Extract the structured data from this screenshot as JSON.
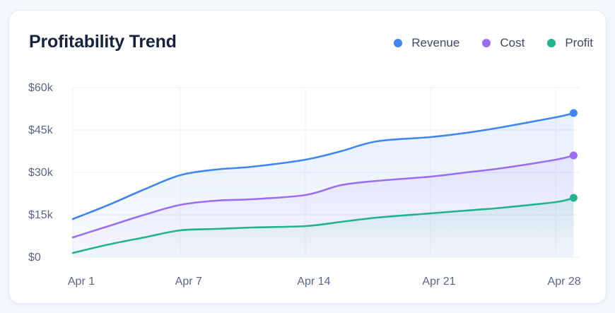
{
  "title": "Profitability Trend",
  "legend": [
    {
      "name": "Revenue",
      "color": "#3f86ef"
    },
    {
      "name": "Cost",
      "color": "#9b6ef0"
    },
    {
      "name": "Profit",
      "color": "#22b38d"
    }
  ],
  "chart_data": {
    "type": "area",
    "title": "Profitability Trend",
    "xlabel": "",
    "ylabel": "",
    "x": [
      1,
      3,
      5,
      7,
      9,
      11,
      14,
      16,
      18,
      21,
      23,
      25,
      28,
      29
    ],
    "xticks": [
      {
        "value": 1,
        "label": "Apr 1"
      },
      {
        "value": 7,
        "label": "Apr 7"
      },
      {
        "value": 14,
        "label": "Apr 14"
      },
      {
        "value": 21,
        "label": "Apr 21"
      },
      {
        "value": 28,
        "label": "Apr 28"
      }
    ],
    "yticks": [
      {
        "value": 0,
        "label": "$0"
      },
      {
        "value": 15000,
        "label": "$15k"
      },
      {
        "value": 30000,
        "label": "$30k"
      },
      {
        "value": 45000,
        "label": "$45k"
      },
      {
        "value": 60000,
        "label": "$60k"
      }
    ],
    "xlim": [
      1,
      29.3
    ],
    "ylim": [
      0,
      60000
    ],
    "grid": true,
    "legend_position": "top-right",
    "series": [
      {
        "name": "Revenue",
        "color": "#3f86ef",
        "values": [
          13500,
          18500,
          24000,
          29000,
          31000,
          32000,
          34500,
          37500,
          41000,
          42500,
          44000,
          46000,
          49500,
          51000
        ]
      },
      {
        "name": "Cost",
        "color": "#9b6ef0",
        "values": [
          7000,
          11000,
          15000,
          18500,
          20000,
          20500,
          22000,
          25500,
          27000,
          28500,
          30000,
          31500,
          34500,
          36000
        ]
      },
      {
        "name": "Profit",
        "color": "#22b38d",
        "values": [
          1500,
          4500,
          7000,
          9500,
          10000,
          10500,
          11000,
          12500,
          14000,
          15500,
          16500,
          17500,
          19500,
          21000
        ]
      }
    ]
  }
}
